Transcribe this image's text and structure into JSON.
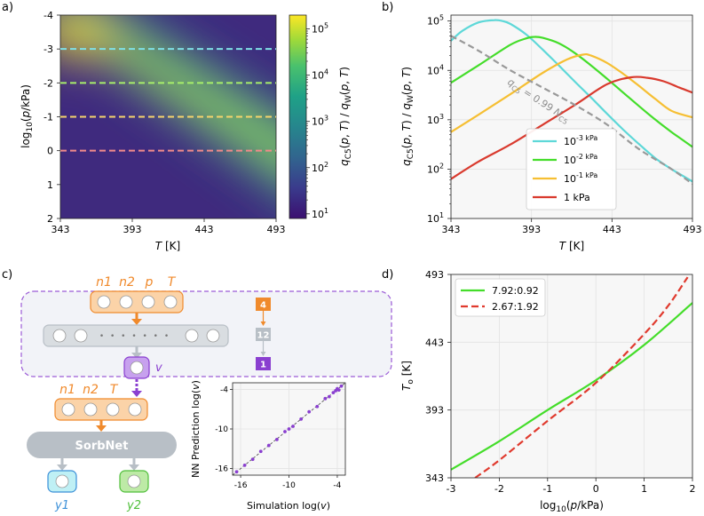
{
  "figure_title": "Composite figure: C5 vs water adsorption, SorbNet network schematic, and crossover temperature",
  "panel_labels": {
    "a": "a)",
    "b": "b)",
    "c": "c)",
    "d": "d)"
  },
  "chart_data": [
    {
      "id": "a",
      "type": "heatmap",
      "title": "",
      "xlabel": "T [K]",
      "ylabel": "log10(p/kPa)",
      "colorbar_label": "qC5(p, T) / qW(p, T)",
      "x_ticks": [
        "343",
        "393",
        "443",
        "493"
      ],
      "x_tick_values": [
        343,
        393,
        443,
        493
      ],
      "y_ticks": [
        "-4",
        "-3",
        "-2",
        "-1",
        "0",
        "1",
        "2"
      ],
      "y_tick_values": [
        -4,
        -3,
        -2,
        -1,
        0,
        1,
        2
      ],
      "xlim": [
        343,
        493
      ],
      "ylim": [
        2,
        -4
      ],
      "colorbar_ticks": [
        "10^1",
        "10^2",
        "10^3",
        "10^4",
        "10^5"
      ],
      "colorbar_range_log10": [
        0.9,
        5.3
      ],
      "colormap": "viridis",
      "ridge": [
        {
          "x": 343,
          "y": -3.4
        },
        {
          "x": 493,
          "y": -0.6
        }
      ],
      "dashed_lines": [
        {
          "y": -3,
          "color": "#7fe0e6"
        },
        {
          "y": -2,
          "color": "#a8ef6a"
        },
        {
          "y": -1,
          "color": "#f5d46c"
        },
        {
          "y": 0,
          "color": "#f08a8a"
        }
      ]
    },
    {
      "id": "b",
      "type": "line",
      "title": "",
      "xlabel": "T [K]",
      "ylabel": "qC5(p, T) / qW(p, T)",
      "x_ticks": [
        "343",
        "393",
        "443",
        "493"
      ],
      "x_tick_values": [
        343,
        393,
        443,
        493
      ],
      "y_ticks": [
        "10^1",
        "10^2",
        "10^3",
        "10^4",
        "10^5"
      ],
      "y_tick_values_log10": [
        1,
        2,
        3,
        4,
        5
      ],
      "xlim": [
        343,
        493
      ],
      "ylim_log10": [
        1,
        5.12
      ],
      "annotation": "qC5 = 0.99 NC5",
      "series": [
        {
          "name": "10^-3 kPa",
          "color": "#5ed8d8",
          "x": [
            343,
            350,
            360,
            370,
            375,
            380,
            390,
            400,
            410,
            420,
            430,
            440,
            450,
            460,
            470,
            480,
            493
          ],
          "y_log10": [
            4.6,
            4.8,
            4.97,
            5.02,
            5.0,
            4.94,
            4.72,
            4.42,
            4.1,
            3.77,
            3.45,
            3.12,
            2.8,
            2.5,
            2.22,
            2.0,
            1.75
          ]
        },
        {
          "name": "10^-2 kPa",
          "color": "#44dd2a",
          "x": [
            343,
            360,
            380,
            390,
            395,
            400,
            410,
            420,
            430,
            440,
            450,
            460,
            470,
            480,
            493
          ],
          "y_log10": [
            3.75,
            4.1,
            4.52,
            4.65,
            4.68,
            4.66,
            4.55,
            4.35,
            4.1,
            3.83,
            3.55,
            3.27,
            3.0,
            2.75,
            2.45
          ]
        },
        {
          "name": "10^-1 kPa",
          "color": "#f6bf33",
          "x": [
            343,
            360,
            380,
            400,
            415,
            425,
            430,
            440,
            450,
            460,
            470,
            480,
            493
          ],
          "y_log10": [
            2.75,
            3.1,
            3.52,
            3.95,
            4.22,
            4.32,
            4.3,
            4.15,
            3.93,
            3.68,
            3.42,
            3.18,
            3.05
          ]
        },
        {
          "name": "1 kPa",
          "color": "#d93a2e",
          "x": [
            343,
            360,
            380,
            400,
            420,
            440,
            455,
            465,
            475,
            485,
            493
          ],
          "y_log10": [
            1.8,
            2.15,
            2.5,
            2.9,
            3.3,
            3.72,
            3.86,
            3.85,
            3.78,
            3.65,
            3.55
          ]
        },
        {
          "name": "qC5 = 0.99 NC5",
          "color": "#999999",
          "dashed": true,
          "x": [
            343,
            360,
            380,
            400,
            420,
            440,
            460,
            480,
            493
          ],
          "y_log10": [
            4.7,
            4.4,
            4.0,
            3.65,
            3.3,
            2.9,
            2.4,
            2.0,
            1.7
          ]
        }
      ],
      "legend": [
        "10^-3 kPa",
        "10^-2 kPa",
        "10^-1 kPa",
        "1 kPa"
      ]
    },
    {
      "id": "c-inset",
      "type": "scatter",
      "title": "",
      "xlabel": "Simulation log(v)",
      "ylabel": "NN Prediction log(v)",
      "x_ticks": [
        "-16",
        "-10",
        "-4"
      ],
      "x_tick_values": [
        -16,
        -10,
        -4
      ],
      "y_ticks": [
        "-16",
        "-10",
        "-4"
      ],
      "y_tick_values": [
        -16,
        -10,
        -4
      ],
      "xlim": [
        -17,
        -3
      ],
      "ylim": [
        -17,
        -3
      ],
      "points": [
        [
          -16.5,
          -16.5
        ],
        [
          -15.5,
          -15.5
        ],
        [
          -14.5,
          -14.6
        ],
        [
          -13.5,
          -13.4
        ],
        [
          -12.5,
          -12.5
        ],
        [
          -11.5,
          -11.6
        ],
        [
          -10.5,
          -10.4
        ],
        [
          -10,
          -10
        ],
        [
          -9.5,
          -9.6
        ],
        [
          -8.5,
          -8.5
        ],
        [
          -7.5,
          -7.4
        ],
        [
          -6.5,
          -6.6
        ],
        [
          -5.5,
          -5.4
        ],
        [
          -5,
          -5.1
        ],
        [
          -4.5,
          -4.5
        ],
        [
          -4,
          -3.9
        ],
        [
          -3.8,
          -4.1
        ],
        [
          -3.5,
          -3.5
        ],
        [
          -4.2,
          -4.2
        ]
      ]
    },
    {
      "id": "d",
      "type": "line",
      "title": "",
      "xlabel": "log10(p/kPa)",
      "ylabel": "To [K]",
      "x_ticks": [
        "-3",
        "-2",
        "-1",
        "0",
        "1",
        "2"
      ],
      "x_tick_values": [
        -3,
        -2,
        -1,
        0,
        1,
        2
      ],
      "y_ticks": [
        "343",
        "393",
        "443",
        "493"
      ],
      "y_tick_values": [
        343,
        393,
        443,
        493
      ],
      "xlim": [
        -3,
        2
      ],
      "ylim": [
        343,
        493
      ],
      "series": [
        {
          "name": "7.92:0.92",
          "color": "#44dd2a",
          "dashed": false,
          "x": [
            -3,
            -2,
            -1,
            0,
            1,
            2
          ],
          "y": [
            349,
            370,
            393,
            415,
            441,
            472
          ]
        },
        {
          "name": "2.67:1.92",
          "color": "#e03a2e",
          "dashed": true,
          "x": [
            -2.5,
            -2,
            -1,
            0,
            1,
            1.5,
            1.9
          ],
          "y": [
            343,
            356,
            385,
            413,
            449,
            470,
            491
          ]
        }
      ],
      "legend": [
        "7.92:0.92",
        "2.67:1.92"
      ]
    }
  ],
  "schematic": {
    "top_inputs": [
      "n1",
      "n2",
      "p",
      "T"
    ],
    "latent_label": "v",
    "layer_sizes": [
      "4",
      "12",
      "1"
    ],
    "dots": "• • • • • • •",
    "bottom_inputs": [
      "n1",
      "n2",
      "T"
    ],
    "network_name": "SorbNet",
    "outputs": [
      "y1",
      "y2"
    ],
    "colors": {
      "orange": "#f08a2c",
      "orange_fill": "#fbd3a8",
      "purple": "#8a3fd0",
      "purple_fill": "#c7a1ee",
      "gray": "#b8bfc6",
      "gray_fill": "#d9dde1",
      "cyan": "#3a8fd8",
      "cyan_fill": "#bff0f5",
      "green": "#4fbf3a",
      "green_fill": "#bdeaa6",
      "dashed_box": "#9b5bd6",
      "box_bg": "#f2f3f8"
    }
  }
}
